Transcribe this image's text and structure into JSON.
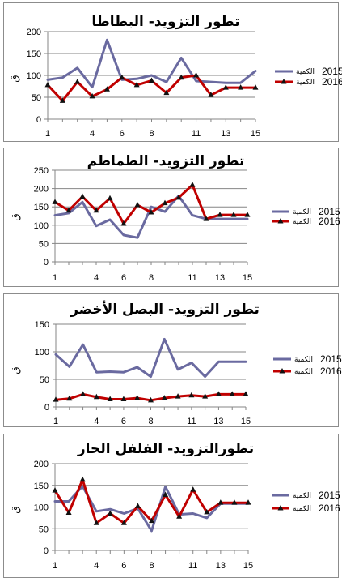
{
  "colors": {
    "series_2015": "#6a6aa0",
    "series_2016": "#c00000",
    "axis": "#868686",
    "grid": "#868686",
    "border": "#8c8c8c"
  },
  "chart_data": [
    {
      "type": "line",
      "title": "تطور التزويد- البطاطا",
      "ylabel": "ق",
      "ylim": [
        0,
        200
      ],
      "yticks": [
        0,
        50,
        100,
        150,
        200
      ],
      "x": [
        1,
        2,
        3,
        4,
        5,
        6,
        7,
        8,
        9,
        10,
        11,
        12,
        13,
        14,
        15
      ],
      "xtick_labels": [
        "1",
        "4",
        "6",
        "8",
        "11",
        "13",
        "15"
      ],
      "grid": true,
      "legend_position": "right",
      "series": [
        {
          "name": "الكمية 2015",
          "legend_year": "2015",
          "legend_word": "الكمية",
          "marker": "none",
          "values": [
            90,
            95,
            117,
            73,
            181,
            90,
            92,
            100,
            85,
            140,
            87,
            85,
            83,
            83,
            110
          ]
        },
        {
          "name": "الكمية 2016",
          "legend_year": "2016",
          "legend_word": "الكمية",
          "marker": "triangle",
          "values": [
            78,
            42,
            85,
            52,
            68,
            95,
            78,
            88,
            60,
            95,
            100,
            55,
            72,
            72,
            72
          ]
        }
      ]
    },
    {
      "type": "line",
      "title": "تطور التزويد- الطماطم",
      "ylabel": "ق",
      "ylim": [
        0,
        250
      ],
      "yticks": [
        0,
        50,
        100,
        150,
        200,
        250
      ],
      "x": [
        1,
        2,
        3,
        4,
        5,
        6,
        7,
        8,
        9,
        10,
        11,
        12,
        13,
        14,
        15
      ],
      "xtick_labels": [
        "1",
        "4",
        "6",
        "8",
        "11",
        "13",
        "15"
      ],
      "grid": true,
      "legend_position": "right",
      "series": [
        {
          "name": "الكمية 2015",
          "legend_year": "2015",
          "legend_word": "الكمية",
          "marker": "none",
          "values": [
            127,
            133,
            163,
            98,
            115,
            73,
            66,
            150,
            137,
            180,
            127,
            117,
            117,
            117,
            117
          ]
        },
        {
          "name": "الكمية 2016",
          "legend_year": "2016",
          "legend_word": "الكمية",
          "marker": "triangle",
          "values": [
            163,
            140,
            178,
            140,
            173,
            104,
            155,
            135,
            160,
            175,
            210,
            117,
            128,
            128,
            128
          ]
        }
      ]
    },
    {
      "type": "line",
      "title": "تطور التزويد- البصل الأخضر",
      "ylabel": "ق",
      "ylim": [
        0,
        150
      ],
      "yticks": [
        0,
        50,
        100,
        150
      ],
      "x": [
        1,
        2,
        3,
        4,
        5,
        6,
        7,
        8,
        9,
        10,
        11,
        12,
        13,
        14,
        15
      ],
      "xtick_labels": [
        "1",
        "4",
        "6",
        "8",
        "11",
        "13",
        "15"
      ],
      "grid": true,
      "legend_position": "right",
      "series": [
        {
          "name": "الكمية 2015",
          "legend_year": "2015",
          "legend_word": "الكمية",
          "marker": "none",
          "values": [
            95,
            73,
            113,
            63,
            64,
            63,
            72,
            55,
            123,
            68,
            80,
            55,
            82,
            82,
            82
          ]
        },
        {
          "name": "الكمية 2016",
          "legend_year": "2016",
          "legend_word": "الكمية",
          "marker": "triangle",
          "values": [
            13,
            15,
            23,
            18,
            14,
            14,
            16,
            12,
            16,
            19,
            21,
            19,
            23,
            23,
            23
          ]
        }
      ]
    },
    {
      "type": "line",
      "title": "تطورالتزويد- الفلفل الحار",
      "ylabel": "ق",
      "ylim": [
        0,
        200
      ],
      "yticks": [
        0,
        50,
        100,
        150,
        200
      ],
      "x": [
        1,
        2,
        3,
        4,
        5,
        6,
        7,
        8,
        9,
        10,
        11,
        12,
        13,
        14,
        15
      ],
      "xtick_labels": [
        "1",
        "4",
        "6",
        "8",
        "11",
        "13",
        "15"
      ],
      "grid": true,
      "legend_position": "right",
      "series": [
        {
          "name": "الكمية 2015",
          "legend_year": "2015",
          "legend_word": "الكمية",
          "marker": "none",
          "values": [
            113,
            113,
            148,
            90,
            95,
            85,
            97,
            45,
            147,
            83,
            85,
            75,
            108,
            108,
            108
          ]
        },
        {
          "name": "الكمية 2016",
          "legend_year": "2016",
          "legend_word": "الكمية",
          "marker": "triangle",
          "values": [
            138,
            87,
            163,
            63,
            85,
            63,
            102,
            68,
            128,
            78,
            140,
            88,
            110,
            110,
            110
          ]
        }
      ]
    }
  ]
}
